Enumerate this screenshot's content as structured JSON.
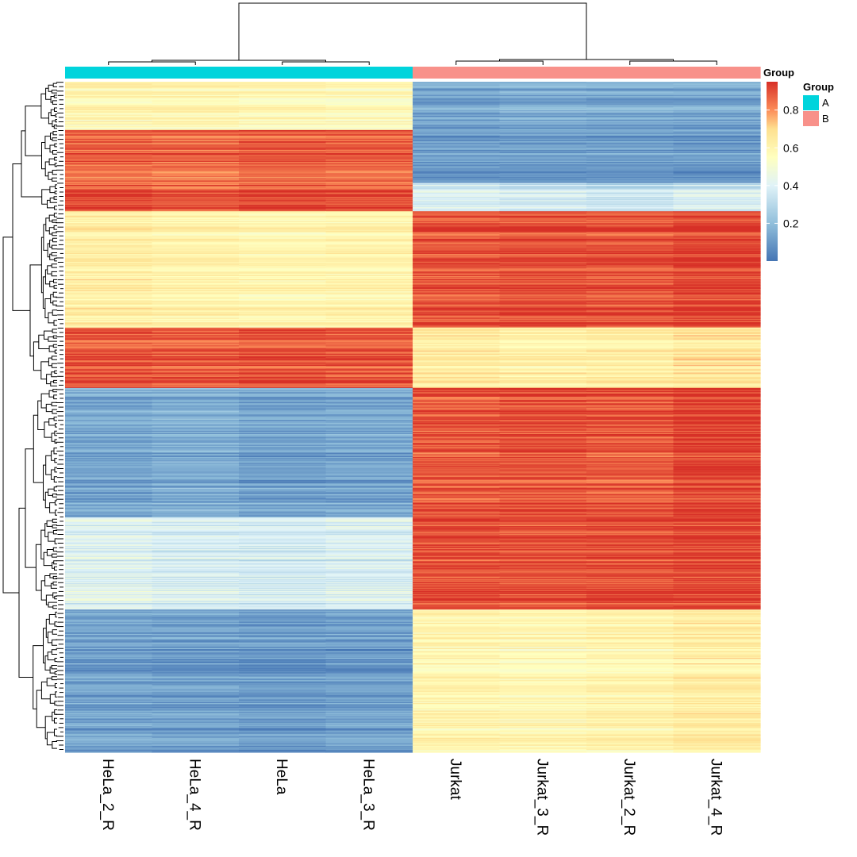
{
  "chart_data": {
    "type": "heatmap",
    "title": "",
    "columns": [
      "HeLa_2_R",
      "HeLa_4_R",
      "HeLa",
      "HeLa_3_R",
      "Jurkat",
      "Jurkat_3_R",
      "Jurkat_2_R",
      "Jurkat_4_R"
    ],
    "column_groups": [
      "A",
      "A",
      "A",
      "A",
      "B",
      "B",
      "B",
      "B"
    ],
    "annotation": {
      "track_label": "Group",
      "legend_title": "Group",
      "levels": [
        {
          "name": "A",
          "color": "#00D4DC"
        },
        {
          "name": "B",
          "color": "#F8918A"
        }
      ]
    },
    "colorbar": {
      "range": [
        0.0,
        0.95
      ],
      "ticks": [
        0.2,
        0.4,
        0.6,
        0.8
      ],
      "tick_labels": [
        "0.2",
        "0.4",
        "0.6",
        "0.8"
      ],
      "stops": [
        {
          "value": 0.0,
          "color": "#4575B4"
        },
        {
          "value": 0.2,
          "color": "#91BFDB"
        },
        {
          "value": 0.4,
          "color": "#E0F3F8"
        },
        {
          "value": 0.55,
          "color": "#FFFFBF"
        },
        {
          "value": 0.7,
          "color": "#FEE090"
        },
        {
          "value": 0.8,
          "color": "#FC8D59"
        },
        {
          "value": 0.95,
          "color": "#D73027"
        }
      ]
    },
    "row_clusters": [
      {
        "rows": 44,
        "values": [
          0.58,
          0.58,
          0.56,
          0.55,
          0.12,
          0.14,
          0.13,
          0.12
        ]
      },
      {
        "rows": 48,
        "values": [
          0.86,
          0.85,
          0.87,
          0.86,
          0.1,
          0.1,
          0.1,
          0.09
        ]
      },
      {
        "rows": 26,
        "values": [
          0.9,
          0.88,
          0.9,
          0.89,
          0.38,
          0.36,
          0.33,
          0.37
        ]
      },
      {
        "rows": 106,
        "values": [
          0.64,
          0.62,
          0.6,
          0.61,
          0.9,
          0.91,
          0.9,
          0.93
        ]
      },
      {
        "rows": 55,
        "values": [
          0.89,
          0.88,
          0.89,
          0.88,
          0.64,
          0.62,
          0.63,
          0.66
        ]
      },
      {
        "rows": 118,
        "values": [
          0.13,
          0.15,
          0.12,
          0.13,
          0.88,
          0.89,
          0.88,
          0.92
        ]
      },
      {
        "rows": 84,
        "values": [
          0.4,
          0.38,
          0.37,
          0.39,
          0.9,
          0.89,
          0.9,
          0.91
        ]
      },
      {
        "rows": 130,
        "values": [
          0.12,
          0.11,
          0.1,
          0.11,
          0.59,
          0.58,
          0.6,
          0.63
        ]
      }
    ]
  }
}
